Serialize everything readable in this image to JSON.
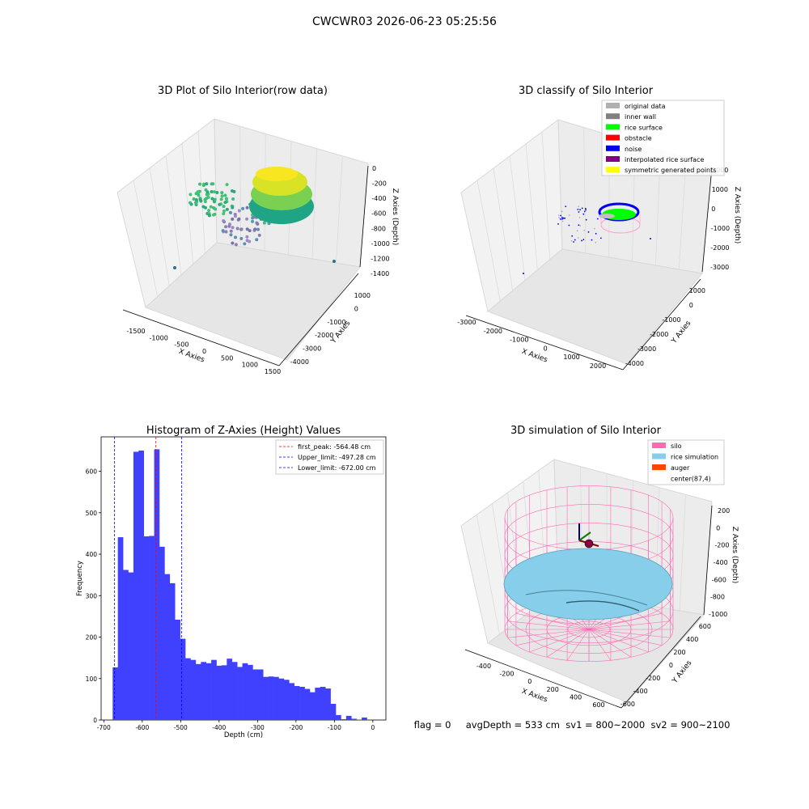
{
  "suptitle": "CWCWR03 2026-06-23 05:25:56",
  "status_line": "flag = 0     avgDepth = 533 cm  sv1 = 800~2000  sv2 = 900~2100",
  "chart_data": [
    {
      "type": "scatter3d",
      "title": "3D Plot of Silo Interior(row data)",
      "xlabel": "X Axies",
      "ylabel": "Y Axies",
      "zlabel": "Z Axies (Depth)",
      "xticks": [
        "-1500",
        "-1000",
        "-500",
        "0",
        "500",
        "1000",
        "1500"
      ],
      "yticks": [
        "1000",
        "0",
        "-1000",
        "-2000",
        "-3000",
        "-4000"
      ],
      "zticks": [
        "0",
        "-200",
        "-400",
        "-600",
        "-800",
        "-1000",
        "-1200",
        "-1400"
      ],
      "colormap": "viridis"
    },
    {
      "type": "scatter3d",
      "title": "3D classify of Silo Interior",
      "xlabel": "X Axies",
      "ylabel": "Y Axies",
      "zlabel": "Z Axies (Depth)",
      "xticks": [
        "-3000",
        "-2000",
        "-1000",
        "0",
        "1000",
        "2000"
      ],
      "yticks": [
        "1000",
        "0",
        "-1000",
        "-2000",
        "-3000",
        "-4000"
      ],
      "zticks": [
        "2000",
        "1000",
        "0",
        "-1000",
        "-2000",
        "-3000"
      ],
      "legend_position": "top-right",
      "legend": [
        {
          "label": "original data",
          "color": "#b0b0b0"
        },
        {
          "label": "inner wall",
          "color": "#808080"
        },
        {
          "label": "rice surface",
          "color": "#00ff00"
        },
        {
          "label": "obstacle",
          "color": "#ff0000"
        },
        {
          "label": "noise",
          "color": "#0000ee"
        },
        {
          "label": "interpolated rice surface",
          "color": "#800080"
        },
        {
          "label": "symmetric generated points",
          "color": "#ffff00"
        }
      ]
    },
    {
      "type": "bar",
      "title": "Histogram of Z-Axies (Height) Values",
      "xlabel": "Depth (cm)",
      "ylabel": "Frequency",
      "xlim": [
        -707,
        34
      ],
      "ylim": [
        0,
        683
      ],
      "xticks": [
        -700,
        -600,
        -500,
        -400,
        -300,
        -200,
        -100,
        0
      ],
      "yticks": [
        0,
        100,
        200,
        300,
        400,
        500,
        600
      ],
      "bar_color": "#4040ff",
      "bins": {
        "start": -677,
        "width": 13.5
      },
      "values": [
        127,
        441,
        362,
        356,
        647,
        650,
        443,
        444,
        653,
        418,
        352,
        330,
        242,
        196,
        149,
        145,
        135,
        140,
        137,
        145,
        131,
        132,
        148,
        140,
        128,
        137,
        133,
        122,
        122,
        104,
        105,
        104,
        100,
        97,
        89,
        82,
        80,
        75,
        67,
        78,
        80,
        76,
        39,
        12,
        2,
        10,
        3,
        1,
        6
      ],
      "vlines": [
        {
          "x": -564.48,
          "color": "#ff0000",
          "label": "first_peak: -564.48 cm"
        },
        {
          "x": -497.28,
          "color": "#0000ff",
          "label": "Upper_limit: -497.28 cm"
        },
        {
          "x": -672.0,
          "color": "#0000ff",
          "label": "Lower_limit: -672.00 cm"
        }
      ],
      "legend_position": "top-right"
    },
    {
      "type": "surface3d",
      "title": "3D simulation of Silo Interior",
      "xlabel": "X Axies",
      "ylabel": "Y Axies",
      "zlabel": "Z Axies (Depth)",
      "xticks": [
        "-400",
        "-200",
        "0",
        "200",
        "400",
        "600"
      ],
      "yticks": [
        "600",
        "400",
        "200",
        "0",
        "-200",
        "-400",
        "-600"
      ],
      "zticks": [
        "200",
        "0",
        "-200",
        "-400",
        "-600",
        "-800",
        "-1000"
      ],
      "legend_position": "top-right",
      "legend": [
        {
          "label": "silo",
          "color": "#ff69b4"
        },
        {
          "label": "rice simulation",
          "color": "#87ceeb"
        },
        {
          "label": "auger",
          "color": "#ff4500"
        },
        {
          "label": "center(87,4)",
          "color": "none"
        }
      ]
    }
  ]
}
